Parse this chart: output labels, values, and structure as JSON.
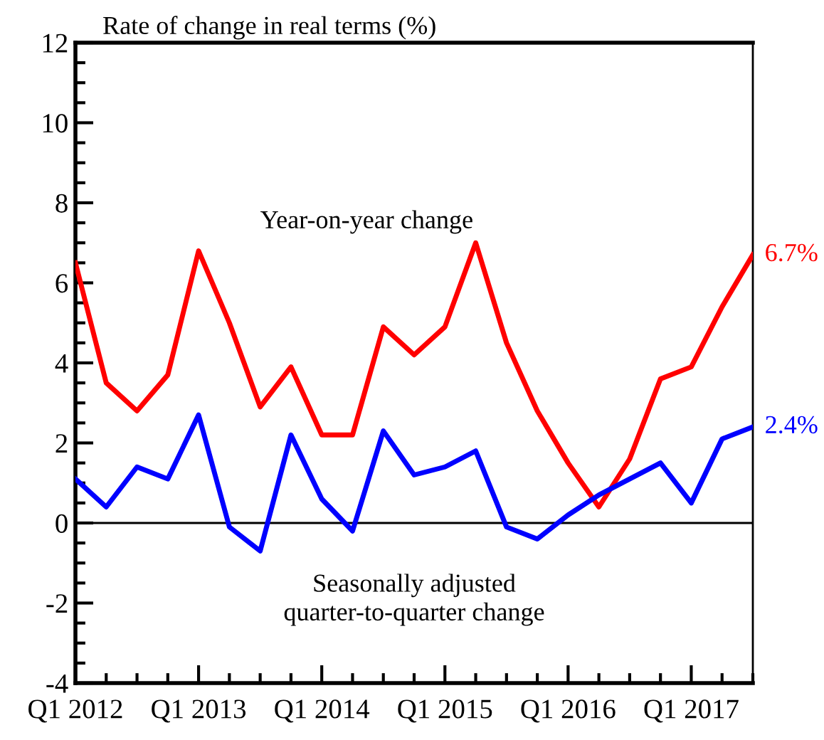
{
  "chart_data": {
    "type": "line",
    "ylabel": "Rate of change in real terms (%)",
    "categories": [
      "Q1 2012",
      null,
      null,
      null,
      "Q1 2013",
      null,
      null,
      null,
      "Q1 2014",
      null,
      null,
      null,
      "Q1 2015",
      null,
      null,
      null,
      "Q1 2016",
      null,
      null,
      null,
      "Q1 2017",
      null,
      null
    ],
    "series": [
      {
        "name": "Year-on-year change",
        "color": "#ff0000",
        "values": [
          6.5,
          3.5,
          2.8,
          3.7,
          6.8,
          5.0,
          2.9,
          3.9,
          2.2,
          2.2,
          4.9,
          4.2,
          4.9,
          7.0,
          4.5,
          2.8,
          1.5,
          0.4,
          1.6,
          3.6,
          3.9,
          5.4,
          6.7
        ],
        "value_labels": [
          null,
          null,
          null,
          null,
          null,
          null,
          null,
          null,
          null,
          null,
          null,
          null,
          null,
          null,
          null,
          null,
          null,
          null,
          null,
          null,
          null,
          null,
          "6.7%"
        ]
      },
      {
        "name": "Seasonally adjusted\nquarter-to-quarter change",
        "color": "#0000ff",
        "values": [
          1.1,
          0.4,
          1.4,
          1.1,
          2.7,
          -0.1,
          -0.7,
          2.2,
          0.6,
          -0.2,
          2.3,
          1.2,
          1.4,
          1.8,
          -0.1,
          -0.4,
          0.2,
          0.7,
          1.1,
          1.5,
          0.5,
          2.1,
          2.4
        ],
        "value_labels": [
          null,
          null,
          null,
          null,
          null,
          null,
          null,
          null,
          null,
          null,
          null,
          null,
          null,
          null,
          null,
          null,
          null,
          null,
          null,
          null,
          null,
          null,
          "2.4%"
        ]
      }
    ],
    "ylim": [
      -4,
      12
    ],
    "yticks": [
      -4,
      {
        "value": -3.5,
        "label": null
      },
      {
        "value": -3,
        "label": null
      },
      {
        "value": -2.5,
        "label": null
      },
      {
        "value": -2,
        "label": "-2"
      },
      {
        "value": -1.5,
        "label": null
      },
      {
        "value": -1,
        "label": null
      },
      {
        "value": -0.5,
        "label": null
      },
      0,
      {
        "value": 0.5,
        "label": null
      },
      {
        "value": 1,
        "label": null
      },
      {
        "value": 1.5,
        "label": null
      },
      2,
      {
        "value": 2.5,
        "label": null
      },
      {
        "value": 3,
        "label": null
      },
      {
        "value": 3.5,
        "label": null
      },
      4,
      {
        "value": 4.5,
        "label": null
      },
      {
        "value": 5,
        "label": null
      },
      {
        "value": 5.5,
        "label": null
      },
      6,
      {
        "value": 6.5,
        "label": null
      },
      {
        "value": 7,
        "label": null
      },
      {
        "value": 7.5,
        "label": null
      },
      8,
      {
        "value": 8.5,
        "label": null
      },
      {
        "value": 9,
        "label": null
      },
      {
        "value": 9.5,
        "label": null
      },
      10,
      {
        "value": 10.5,
        "label": null
      },
      {
        "value": 11,
        "label": null
      },
      {
        "value": 11.5,
        "label": null
      },
      12
    ],
    "ref_lines": [
      {
        "axis": "y",
        "value": 0,
        "color": "#000000"
      }
    ],
    "grid": false,
    "legend": false,
    "marker": "none",
    "line_style": "solid"
  }
}
